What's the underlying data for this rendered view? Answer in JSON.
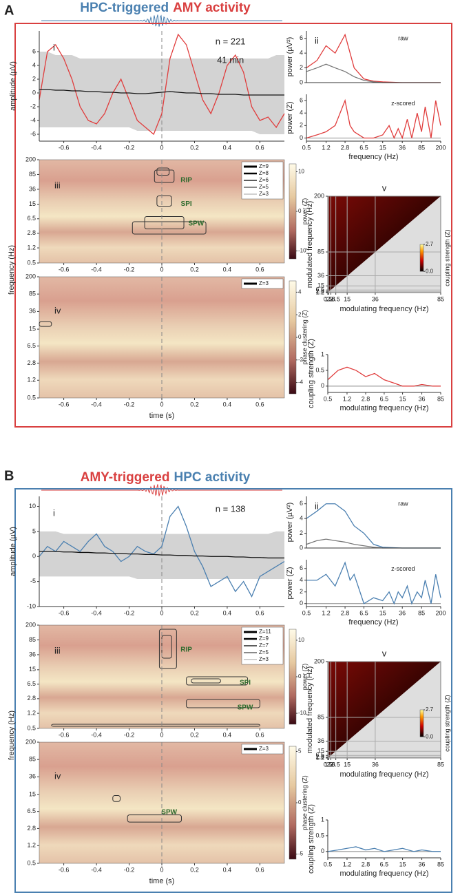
{
  "panels": [
    {
      "letter": "A",
      "title": [
        {
          "text": "HPC-triggered",
          "color": "#4a80b0"
        },
        {
          "text": "AMY activity",
          "color": "#d94040"
        }
      ],
      "border_color": "#d94040",
      "wavelet_color": "#4a80b0"
    },
    {
      "letter": "B",
      "title": [
        {
          "text": "AMY-triggered",
          "color": "#d94040"
        },
        {
          "text": "HPC activity",
          "color": "#4a80b0"
        }
      ],
      "border_color": "#4a80b0",
      "wavelet_color": "#d94040"
    }
  ],
  "chart_data": [
    {
      "type": "line",
      "label": "i",
      "ylabel": "amplitude (µV)",
      "x": [
        -0.75,
        -0.7,
        -0.65,
        -0.6,
        -0.55,
        -0.5,
        -0.45,
        -0.4,
        -0.35,
        -0.3,
        -0.25,
        -0.2,
        -0.15,
        -0.1,
        -0.05,
        0,
        0.05,
        0.1,
        0.15,
        0.2,
        0.25,
        0.3,
        0.35,
        0.4,
        0.45,
        0.5,
        0.55,
        0.6,
        0.65,
        0.7,
        0.75
      ],
      "xlim": [
        -0.75,
        0.75
      ],
      "xticks": [
        -0.6,
        -0.4,
        -0.2,
        0,
        0.2,
        0.4,
        0.6
      ],
      "ylim": [
        -7,
        9
      ],
      "yticks": [
        -6,
        -4,
        -2,
        0,
        2,
        4,
        6
      ],
      "vline": 0,
      "band": {
        "color": "#d3d3d3",
        "upper": [
          6,
          6,
          5.5,
          5.5,
          5.5,
          5,
          5,
          5,
          5,
          5,
          5,
          5,
          5,
          5,
          5,
          5,
          5,
          5,
          5,
          5,
          5,
          5,
          5,
          5,
          5,
          5,
          5,
          5,
          5,
          5.5,
          5.5
        ],
        "lower": [
          -5,
          -5,
          -5,
          -5,
          -5,
          -5,
          -5,
          -5,
          -5,
          -5,
          -5,
          -5,
          -5.5,
          -5.5,
          -5.5,
          -5.5,
          -5.5,
          -5.5,
          -5.5,
          -5.5,
          -5.5,
          -5.5,
          -5.5,
          -5.5,
          -5.5,
          -5.5,
          -5.5,
          -6,
          -6,
          -6,
          -6
        ]
      },
      "series": [
        {
          "color": "#e03c3c",
          "values": [
            -1,
            6,
            7,
            5,
            2,
            -2,
            -4,
            -4.5,
            -3,
            0,
            2,
            -1,
            -4,
            -5,
            -6,
            -3,
            5,
            8.5,
            7,
            3,
            -1,
            -3,
            0,
            4,
            5.5,
            3,
            -2,
            -4,
            -3.5,
            -5,
            -3
          ]
        },
        {
          "color": "#111111",
          "values": [
            0.5,
            0.5,
            0.4,
            0.4,
            0.3,
            0.3,
            0.2,
            0.2,
            0.1,
            0.1,
            0,
            0,
            -0.1,
            -0.1,
            0,
            0.1,
            0.2,
            0.1,
            0,
            0,
            -0.1,
            -0.1,
            -0.2,
            -0.2,
            -0.2,
            -0.3,
            -0.3,
            -0.3,
            -0.3,
            -0.3,
            -0.3
          ]
        }
      ],
      "annotations": [
        "n = 221",
        "41 min"
      ]
    },
    {
      "type": "line",
      "label": "ii",
      "ylabel": "power (µV²)",
      "xscale": "log",
      "x": [
        0.5,
        0.8,
        1.2,
        1.8,
        2.8,
        4.2,
        6.5,
        10,
        15,
        36,
        85,
        200
      ],
      "xlim": [
        0.5,
        200
      ],
      "ylim": [
        0,
        7
      ],
      "yticks": [
        0,
        2,
        4,
        6
      ],
      "series": [
        {
          "color": "#e03c3c",
          "values": [
            2,
            3,
            5,
            4,
            6.5,
            2,
            0.5,
            0.2,
            0.1,
            0,
            0,
            0
          ]
        },
        {
          "color": "#777777",
          "values": [
            1.5,
            2,
            2.5,
            2,
            1.5,
            0.8,
            0.3,
            0.1,
            0,
            0,
            0,
            0
          ]
        }
      ],
      "annotations": [
        "raw"
      ]
    },
    {
      "type": "line",
      "ylabel": "power (Z)",
      "xlabel": "frequency (Hz)",
      "xscale": "log",
      "x": [
        0.5,
        0.8,
        1.2,
        1.8,
        2.8,
        3.5,
        4.2,
        6.5,
        10,
        15,
        20,
        25,
        30,
        36,
        45,
        55,
        70,
        85,
        100,
        130,
        160,
        200
      ],
      "xlim": [
        0.5,
        200
      ],
      "xticks": [
        0.5,
        1.2,
        2.8,
        6.5,
        15,
        36,
        85,
        200
      ],
      "ylim": [
        -0.5,
        7
      ],
      "yticks": [
        0,
        2,
        4,
        6
      ],
      "hline": 0,
      "hline_color": "#888888",
      "series": [
        {
          "color": "#e03c3c",
          "values": [
            0,
            0.5,
            1,
            2,
            6,
            2,
            1,
            0,
            0,
            0.5,
            2,
            0,
            1.5,
            0,
            3,
            0,
            4,
            1,
            5,
            0,
            6,
            2
          ]
        }
      ],
      "annotations": [
        "z-scored"
      ]
    },
    {
      "type": "heatmap",
      "label": "iii",
      "ylabel": "frequency (Hz)",
      "xlim": [
        -0.75,
        0.75
      ],
      "xticks": [
        -0.6,
        -0.4,
        -0.2,
        0,
        0.2,
        0.4,
        0.6
      ],
      "yscale": "log",
      "ylim": [
        0.5,
        200
      ],
      "yticks": [
        0.5,
        1.2,
        2.8,
        6.5,
        15,
        36,
        85,
        200
      ],
      "vline": 0,
      "clim": [
        -12,
        12
      ],
      "cticks": [
        10,
        0,
        -10
      ],
      "clabel": "power (Z)",
      "contour_legend": [
        "Z=9",
        "Z=8",
        "Z=6",
        "Z=5",
        "Z=3"
      ],
      "annotations": [
        "RIP",
        "SPI",
        "SPW"
      ]
    },
    {
      "type": "heatmap",
      "label": "iv",
      "xlabel": "time (s)",
      "xlim": [
        -0.75,
        0.75
      ],
      "xticks": [
        -0.6,
        -0.4,
        -0.2,
        0,
        0.2,
        0.4,
        0.6
      ],
      "yscale": "log",
      "ylim": [
        0.5,
        200
      ],
      "yticks": [
        0.5,
        1.2,
        2.8,
        6.5,
        15,
        36,
        85,
        200
      ],
      "vline": 0,
      "clim": [
        -5,
        5
      ],
      "cticks": [
        4,
        2,
        0,
        -2,
        -4
      ],
      "clabel": "phase clustering (Z)",
      "contour_legend": [
        "Z=3"
      ],
      "annotations": []
    },
    {
      "type": "comodulogram",
      "label": "v",
      "xlabel": "modulating frequency (Hz)",
      "ylabel": "modulated frequency (Hz)",
      "xlabel_color": "#4a80b0",
      "ylabel_color": "#d94040",
      "xlim": [
        0.5,
        85
      ],
      "xticks": [
        0.5,
        1.2,
        2.8,
        6.5,
        15,
        36,
        85
      ],
      "ylim": [
        1.2,
        200
      ],
      "yticks": [
        1.2,
        2.8,
        6.5,
        15,
        36,
        85,
        200
      ],
      "clim": [
        0,
        2.7
      ],
      "cticks": [
        {
          "value": 0,
          "label": "0.0"
        },
        2.7
      ],
      "clabel": "coupling strength (Z)"
    },
    {
      "type": "line",
      "ylabel": "coupling strength (Z)",
      "xlabel": "modulating frequency (Hz)",
      "xlabel_color": "#4a80b0",
      "xscale": "log",
      "x": [
        0.5,
        0.8,
        1.2,
        1.8,
        2.8,
        4.2,
        6.5,
        10,
        15,
        25,
        36,
        60,
        85
      ],
      "xlim": [
        0.5,
        85
      ],
      "xticks": [
        0.5,
        1.2,
        2.8,
        6.5,
        15,
        36,
        85
      ],
      "ylim": [
        -0.2,
        1
      ],
      "yticks": [
        0,
        0.5,
        1
      ],
      "hline": 0,
      "hline_color": "#888888",
      "series": [
        {
          "color": "#e03c3c",
          "values": [
            0.2,
            0.5,
            0.6,
            0.5,
            0.3,
            0.4,
            0.2,
            0.1,
            0,
            0,
            0.05,
            0,
            0
          ]
        }
      ]
    },
    {
      "type": "line",
      "label": "i",
      "ylabel": "amplitude (µV)",
      "x": [
        -0.75,
        -0.7,
        -0.65,
        -0.6,
        -0.55,
        -0.5,
        -0.45,
        -0.4,
        -0.35,
        -0.3,
        -0.25,
        -0.2,
        -0.15,
        -0.1,
        -0.05,
        0,
        0.05,
        0.1,
        0.15,
        0.2,
        0.25,
        0.3,
        0.35,
        0.4,
        0.45,
        0.5,
        0.55,
        0.6,
        0.65,
        0.7,
        0.75
      ],
      "xlim": [
        -0.75,
        0.75
      ],
      "xticks": [
        -0.6,
        -0.4,
        -0.2,
        0,
        0.2,
        0.4,
        0.6
      ],
      "ylim": [
        -10,
        12
      ],
      "yticks": [
        -10,
        -5,
        0,
        5,
        10
      ],
      "vline": 0,
      "band": {
        "color": "#d3d3d3",
        "upper": [
          5,
          5,
          5,
          4.5,
          4.5,
          4.5,
          4.5,
          4.5,
          4.5,
          4.5,
          4.5,
          4.5,
          4.5,
          4.5,
          4.5,
          4.5,
          4.5,
          4.5,
          4.5,
          4.5,
          4.5,
          4.5,
          4.5,
          4.5,
          4.5,
          4.5,
          4.5,
          4.5,
          4.5,
          5,
          5
        ],
        "lower": [
          -4,
          -4,
          -4,
          -4,
          -4,
          -4,
          -4,
          -4,
          -4,
          -4,
          -4,
          -4,
          -4.5,
          -4.5,
          -4.5,
          -4.5,
          -4.5,
          -4.5,
          -4.5,
          -4.5,
          -4.5,
          -4.5,
          -4.5,
          -4.5,
          -4.5,
          -4.5,
          -4.5,
          -4.5,
          -4.5,
          -4.5,
          -4.5
        ]
      },
      "series": [
        {
          "color": "#4a7fb0",
          "values": [
            0,
            2,
            1,
            3,
            2,
            1,
            3,
            4.5,
            2,
            1,
            -1,
            0,
            2,
            1,
            0.5,
            2,
            8,
            10,
            6,
            1,
            -2,
            -6,
            -5,
            -4,
            -7,
            -5,
            -8,
            -4,
            -3,
            -2,
            -1
          ]
        },
        {
          "color": "#111111",
          "values": [
            1,
            1,
            1,
            0.9,
            0.9,
            0.8,
            0.8,
            0.7,
            0.7,
            0.6,
            0.6,
            0.5,
            0.5,
            0.4,
            0.4,
            0.3,
            0.3,
            0.2,
            0.2,
            0.1,
            0.1,
            0,
            0,
            0,
            -0.1,
            -0.1,
            -0.2,
            -0.2,
            -0.3,
            -0.3,
            -0.3
          ]
        }
      ],
      "annotations": [
        "n = 138"
      ]
    },
    {
      "type": "line",
      "label": "ii",
      "ylabel": "power (µV²)",
      "xscale": "log",
      "x": [
        0.5,
        0.8,
        1.2,
        1.8,
        2.8,
        4.2,
        6.5,
        10,
        15,
        36,
        85,
        200
      ],
      "xlim": [
        0.5,
        200
      ],
      "ylim": [
        0,
        7
      ],
      "yticks": [
        0,
        2,
        4,
        6
      ],
      "series": [
        {
          "color": "#4a7fb0",
          "values": [
            4,
            5,
            6,
            6,
            5,
            3,
            2,
            0.5,
            0.1,
            0,
            0,
            0
          ]
        },
        {
          "color": "#777777",
          "values": [
            0.5,
            1,
            1.2,
            1,
            0.8,
            0.5,
            0.3,
            0.1,
            0,
            0,
            0,
            0
          ]
        }
      ],
      "annotations": [
        "raw"
      ]
    },
    {
      "type": "line",
      "ylabel": "power (Z)",
      "xlabel": "frequency (Hz)",
      "xscale": "log",
      "x": [
        0.5,
        0.8,
        1.2,
        1.8,
        2.8,
        3.5,
        4.2,
        6.5,
        10,
        15,
        20,
        25,
        30,
        36,
        45,
        55,
        70,
        85,
        100,
        130,
        160,
        200
      ],
      "xlim": [
        0.5,
        200
      ],
      "xticks": [
        0.5,
        1.2,
        2.8,
        6.5,
        15,
        36,
        85,
        200
      ],
      "ylim": [
        -0.5,
        7.5
      ],
      "yticks": [
        0,
        2,
        4,
        6
      ],
      "hline": 0,
      "hline_color": "#888888",
      "series": [
        {
          "color": "#4a7fb0",
          "values": [
            4,
            4,
            5,
            3,
            7,
            4,
            5,
            0,
            1,
            0.5,
            2,
            0,
            2,
            1,
            3,
            0,
            2,
            1,
            4,
            0,
            5,
            1
          ]
        }
      ],
      "annotations": [
        "z-scored"
      ]
    },
    {
      "type": "heatmap",
      "label": "iii",
      "ylabel": "frequency (Hz)",
      "xlim": [
        -0.75,
        0.75
      ],
      "xticks": [
        -0.6,
        -0.4,
        -0.2,
        0,
        0.2,
        0.4,
        0.6
      ],
      "yscale": "log",
      "ylim": [
        0.5,
        200
      ],
      "yticks": [
        0.5,
        1.2,
        2.8,
        6.5,
        15,
        36,
        85,
        200
      ],
      "vline": 0,
      "clim": [
        -13,
        13
      ],
      "cticks": [
        10,
        0,
        -10
      ],
      "clabel": "power (Z)",
      "contour_legend": [
        "Z=11",
        "Z=9",
        "Z=7",
        "Z=5",
        "Z=3"
      ],
      "annotations": [
        "RIP",
        "SPI",
        "SPW"
      ]
    },
    {
      "type": "heatmap",
      "label": "iv",
      "xlabel": "time (s)",
      "xlim": [
        -0.75,
        0.75
      ],
      "xticks": [
        -0.6,
        -0.4,
        -0.2,
        0,
        0.2,
        0.4,
        0.6
      ],
      "yscale": "log",
      "ylim": [
        0.5,
        200
      ],
      "yticks": [
        0.5,
        1.2,
        2.8,
        6.5,
        15,
        36,
        85,
        200
      ],
      "vline": 0,
      "clim": [
        -5.5,
        5.5
      ],
      "cticks": [
        5,
        0,
        -5
      ],
      "clabel": "phase clustering (Z)",
      "contour_legend": [
        "Z=3"
      ],
      "annotations": [
        "SPW"
      ]
    },
    {
      "type": "comodulogram",
      "label": "v",
      "xlabel": "modulating frequency (Hz)",
      "ylabel": "modulated frequency (Hz)",
      "xlabel_color": "#d94040",
      "ylabel_color": "#4a80b0",
      "xlim": [
        0.5,
        85
      ],
      "xticks": [
        0.5,
        1.2,
        2.8,
        6.5,
        15,
        36,
        85
      ],
      "ylim": [
        1.2,
        200
      ],
      "yticks": [
        1.2,
        2.8,
        6.5,
        15,
        36,
        85,
        200
      ],
      "clim": [
        0,
        2.7
      ],
      "cticks": [
        {
          "value": 0,
          "label": "0.0"
        },
        2.7
      ],
      "clabel": "coupling strength (Z)"
    },
    {
      "type": "line",
      "ylabel": "coupling strength (Z)",
      "xlabel": "modulating frequency (Hz)",
      "xlabel_color": "#d94040",
      "xscale": "log",
      "x": [
        0.5,
        0.8,
        1.2,
        1.8,
        2.8,
        4.2,
        6.5,
        10,
        15,
        25,
        36,
        60,
        85
      ],
      "xlim": [
        0.5,
        85
      ],
      "xticks": [
        0.5,
        1.2,
        2.8,
        6.5,
        15,
        36,
        85
      ],
      "ylim": [
        -0.2,
        1
      ],
      "yticks": [
        0,
        0.5,
        1
      ],
      "hline": 0,
      "hline_color": "#888888",
      "series": [
        {
          "color": "#4a7fb0",
          "values": [
            0,
            0.05,
            0.1,
            0.15,
            0.05,
            0.1,
            0,
            0.05,
            0.1,
            0,
            0.05,
            0,
            0
          ]
        }
      ]
    }
  ]
}
